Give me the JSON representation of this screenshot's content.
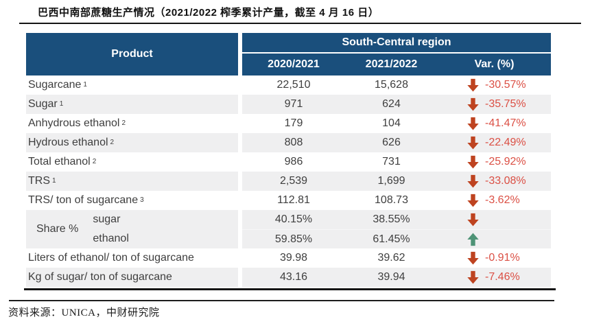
{
  "title": "巴西中南部蔗糖生产情况（2021/2022 榨季累计产量，截至 4 月 16 日）",
  "footer": {
    "source": "资料来源：UNICA，中财研究院"
  },
  "icons": {
    "down": "down-arrow-icon",
    "up": "up-arrow-icon"
  },
  "table": {
    "product_header": "Product",
    "group_header": "South-Central region",
    "columns": [
      "2020/2021",
      "2021/2022",
      "Var. (%)"
    ],
    "rows": [
      {
        "label": "Sugarcane",
        "sup": "1",
        "y2020": "22,510",
        "y2021": "15,628",
        "trend": "down",
        "variation": "-30.57%"
      },
      {
        "label": "Sugar",
        "sup": "1",
        "y2020": "971",
        "y2021": "624",
        "trend": "down",
        "variation": "-35.75%"
      },
      {
        "label": "Anhydrous ethanol",
        "sup": "2",
        "y2020": "179",
        "y2021": "104",
        "trend": "down",
        "variation": "-41.47%"
      },
      {
        "label": "Hydrous ethanol",
        "sup": "2",
        "y2020": "808",
        "y2021": "626",
        "trend": "down",
        "variation": "-22.49%"
      },
      {
        "label": "Total ethanol",
        "sup": "2",
        "y2020": "986",
        "y2021": "731",
        "trend": "down",
        "variation": "-25.92%"
      },
      {
        "label": "TRS",
        "sup": "1",
        "y2020": "2,539",
        "y2021": "1,699",
        "trend": "down",
        "variation": "-33.08%"
      },
      {
        "label": "TRS/ ton of sugarcane",
        "sup": "3",
        "y2020": "112.81",
        "y2021": "108.73",
        "trend": "down",
        "variation": "-3.62%"
      }
    ],
    "share_group": {
      "label": "Share %",
      "rows": [
        {
          "label": "sugar",
          "y2020": "40.15%",
          "y2021": "38.55%",
          "trend": "down",
          "variation": ""
        },
        {
          "label": "ethanol",
          "y2020": "59.85%",
          "y2021": "61.45%",
          "trend": "up",
          "variation": ""
        }
      ]
    },
    "rows_after": [
      {
        "label": "Liters of ethanol/ ton of sugarcane",
        "sup": "",
        "y2020": "39.98",
        "y2021": "39.62",
        "trend": "down",
        "variation": "-0.91%"
      },
      {
        "label": "Kg of sugar/ ton of sugarcane",
        "sup": "",
        "y2020": "43.16",
        "y2021": "39.94",
        "trend": "down",
        "variation": "-7.46%"
      }
    ],
    "colors": {
      "header_blue": "#1A4F7C",
      "stripe_gray": "#EFEFF0",
      "down_arrow": "#BE4320",
      "up_arrow": "#4E9376",
      "variation_text": "#DB4F44",
      "body_text": "#3E3E3E"
    }
  }
}
